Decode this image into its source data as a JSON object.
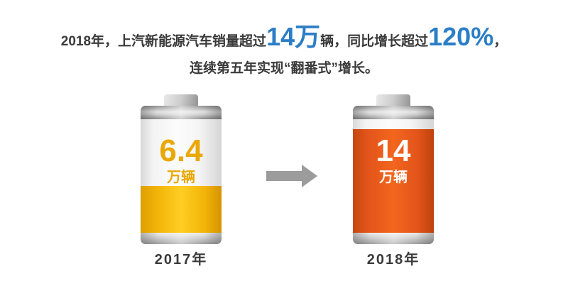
{
  "headline": {
    "segments": [
      {
        "text": "2018年，上汽新能源汽车销量超过",
        "highlight": false
      },
      {
        "text": "14万",
        "highlight": true
      },
      {
        "text": "辆，同比增长超过",
        "highlight": false
      },
      {
        "text": "120%",
        "highlight": true
      },
      {
        "text": "，",
        "highlight": false
      }
    ],
    "line2": "连续第五年实现“翻番式”增长。"
  },
  "batteries": [
    {
      "year": "2017年",
      "value": "6.4",
      "unit": "万辆",
      "fill_percent": 41,
      "fill_color": "#f2b307",
      "value_color": "#e9a803"
    },
    {
      "year": "2018年",
      "value": "14",
      "unit": "万辆",
      "fill_percent": 91,
      "fill_color": "#e2541a",
      "value_color": "#ffffff"
    }
  ],
  "arrow": {
    "icon": "arrow-right-icon",
    "color": "#9c9c9c"
  },
  "colors": {
    "accent_blue": "#2b7ec6",
    "text_dark": "#3a3a3a",
    "battery_yellow": "#f2b307",
    "battery_orange": "#e2541a",
    "silver": "#c8c8c8",
    "background": "#ffffff"
  },
  "chart_data": {
    "type": "bar",
    "representation": "battery-fill pictogram",
    "title": "2018年，上汽新能源汽车销量超过14万辆，同比增长超过120%，连续第五年实现“翻番式”增长。",
    "categories": [
      "2017年",
      "2018年"
    ],
    "values": [
      6.4,
      14
    ],
    "unit": "万辆",
    "annotations": [
      "同比增长超过120%",
      "连续第五年实现“翻番式”增长"
    ],
    "fill_percent": [
      41,
      91
    ],
    "bar_colors": [
      "#f2b307",
      "#e2541a"
    ],
    "legend": "none",
    "grid": false
  }
}
